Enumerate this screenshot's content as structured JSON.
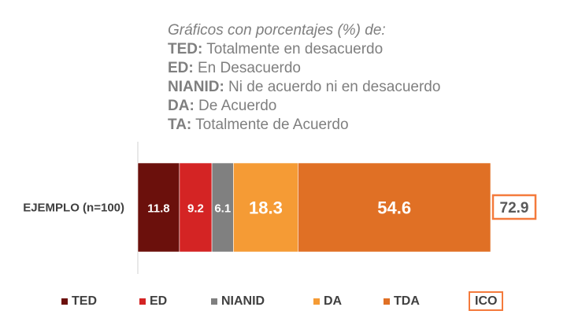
{
  "notes": {
    "intro": "Gráficos con porcentajes (%) de:",
    "lines": [
      {
        "abbr": "TED:",
        "text": " Totalmente en desacuerdo"
      },
      {
        "abbr": "ED:",
        "text": " En Desacuerdo"
      },
      {
        "abbr": "NIANID:",
        "text": " Ni de acuerdo ni en desacuerdo"
      },
      {
        "abbr": "DA:",
        "text": " De Acuerdo"
      },
      {
        "abbr": "TA:",
        "text": " Totalmente de Acuerdo"
      }
    ]
  },
  "chart_data": {
    "type": "bar",
    "orientation": "horizontal-stacked",
    "categories": [
      "EJEMPLO (n=100)"
    ],
    "series": [
      {
        "name": "TED",
        "values": [
          11.8
        ],
        "color": "#6b100c"
      },
      {
        "name": "ED",
        "values": [
          9.2
        ],
        "color": "#d42424"
      },
      {
        "name": "NIANID",
        "values": [
          6.1
        ],
        "color": "#808080"
      },
      {
        "name": "DA",
        "values": [
          18.3
        ],
        "color": "#f59b35"
      },
      {
        "name": "TDA",
        "values": [
          54.6
        ],
        "color": "#e07025"
      }
    ],
    "ico": {
      "label": "ICO",
      "values": [
        72.9
      ],
      "color": "#f47a3c"
    },
    "xlim": [
      0,
      100
    ],
    "grid": false,
    "legend": "bottom"
  }
}
